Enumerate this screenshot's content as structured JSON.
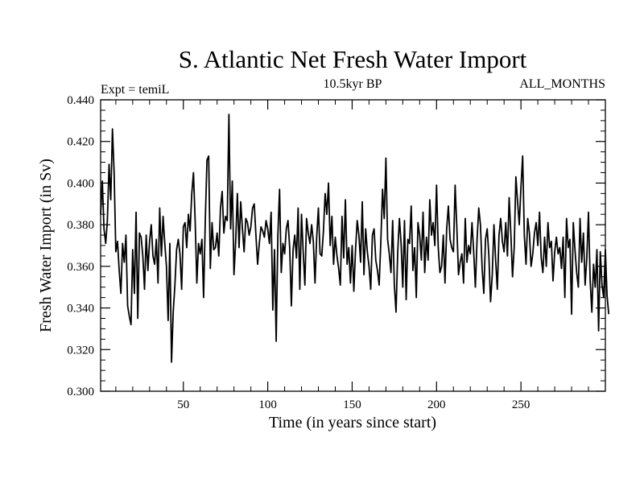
{
  "chart_data": {
    "type": "line",
    "title": "S. Atlantic Net Fresh Water Import",
    "subtitle_left": "Expt = temiL",
    "subtitle_center": "10.5kyr BP",
    "subtitle_right": "ALL_MONTHS",
    "xlabel": "Time (in years since start)",
    "ylabel": "Fresh Water Import (in Sv)",
    "xlim": [
      1,
      300
    ],
    "ylim": [
      0.3,
      0.44
    ],
    "x_ticks": [
      50,
      100,
      150,
      200,
      250
    ],
    "x_tick_labels": [
      "50",
      "100",
      "150",
      "200",
      "250"
    ],
    "y_ticks": [
      0.3,
      0.32,
      0.34,
      0.36,
      0.38,
      0.4,
      0.42,
      0.44
    ],
    "y_tick_labels": [
      "0.300",
      "0.320",
      "0.340",
      "0.360",
      "0.380",
      "0.400",
      "0.420",
      "0.440"
    ],
    "grid": false,
    "series": [
      {
        "name": "Fresh Water Import",
        "color": "#000000",
        "x_start": 1,
        "x_step": 1,
        "values": [
          0.385,
          0.401,
          0.378,
          0.371,
          0.382,
          0.409,
          0.392,
          0.426,
          0.405,
          0.367,
          0.372,
          0.358,
          0.347,
          0.371,
          0.362,
          0.375,
          0.341,
          0.336,
          0.332,
          0.368,
          0.347,
          0.386,
          0.335,
          0.376,
          0.374,
          0.365,
          0.349,
          0.375,
          0.358,
          0.372,
          0.38,
          0.365,
          0.361,
          0.373,
          0.352,
          0.388,
          0.365,
          0.384,
          0.371,
          0.36,
          0.334,
          0.371,
          0.314,
          0.338,
          0.351,
          0.368,
          0.373,
          0.366,
          0.349,
          0.379,
          0.381,
          0.369,
          0.385,
          0.377,
          0.395,
          0.405,
          0.382,
          0.352,
          0.371,
          0.366,
          0.373,
          0.345,
          0.382,
          0.411,
          0.413,
          0.359,
          0.381,
          0.368,
          0.369,
          0.376,
          0.365,
          0.388,
          0.396,
          0.376,
          0.384,
          0.382,
          0.433,
          0.378,
          0.401,
          0.356,
          0.372,
          0.395,
          0.369,
          0.391,
          0.378,
          0.367,
          0.383,
          0.381,
          0.375,
          0.379,
          0.388,
          0.39,
          0.375,
          0.361,
          0.371,
          0.379,
          0.377,
          0.374,
          0.382,
          0.378,
          0.371,
          0.386,
          0.339,
          0.368,
          0.324,
          0.375,
          0.397,
          0.357,
          0.371,
          0.366,
          0.378,
          0.382,
          0.369,
          0.341,
          0.368,
          0.375,
          0.364,
          0.388,
          0.349,
          0.385,
          0.367,
          0.351,
          0.383,
          0.376,
          0.371,
          0.38,
          0.372,
          0.352,
          0.374,
          0.388,
          0.366,
          0.365,
          0.377,
          0.395,
          0.385,
          0.4,
          0.37,
          0.384,
          0.361,
          0.374,
          0.365,
          0.359,
          0.351,
          0.384,
          0.364,
          0.392,
          0.361,
          0.369,
          0.352,
          0.37,
          0.348,
          0.368,
          0.382,
          0.375,
          0.362,
          0.391,
          0.356,
          0.378,
          0.367,
          0.36,
          0.349,
          0.375,
          0.378,
          0.363,
          0.358,
          0.351,
          0.372,
          0.397,
          0.383,
          0.412,
          0.373,
          0.366,
          0.357,
          0.382,
          0.351,
          0.338,
          0.367,
          0.383,
          0.371,
          0.35,
          0.382,
          0.344,
          0.373,
          0.371,
          0.389,
          0.358,
          0.369,
          0.345,
          0.381,
          0.375,
          0.363,
          0.386,
          0.357,
          0.374,
          0.363,
          0.392,
          0.375,
          0.381,
          0.37,
          0.399,
          0.369,
          0.357,
          0.36,
          0.375,
          0.352,
          0.378,
          0.389,
          0.373,
          0.369,
          0.367,
          0.399,
          0.379,
          0.356,
          0.362,
          0.366,
          0.352,
          0.383,
          0.362,
          0.37,
          0.366,
          0.381,
          0.367,
          0.35,
          0.373,
          0.388,
          0.38,
          0.359,
          0.347,
          0.373,
          0.378,
          0.365,
          0.343,
          0.356,
          0.38,
          0.363,
          0.349,
          0.375,
          0.383,
          0.372,
          0.367,
          0.381,
          0.365,
          0.393,
          0.376,
          0.355,
          0.369,
          0.403,
          0.391,
          0.38,
          0.398,
          0.413,
          0.375,
          0.361,
          0.383,
          0.376,
          0.36,
          0.366,
          0.376,
          0.381,
          0.37,
          0.386,
          0.364,
          0.357,
          0.374,
          0.36,
          0.381,
          0.369,
          0.372,
          0.353,
          0.367,
          0.374,
          0.366,
          0.369,
          0.359,
          0.374,
          0.345,
          0.383,
          0.369,
          0.373,
          0.337,
          0.381,
          0.368,
          0.357,
          0.35,
          0.383,
          0.362,
          0.376,
          0.351,
          0.364,
          0.386,
          0.353,
          0.338,
          0.361,
          0.35,
          0.368,
          0.329,
          0.367,
          0.351,
          0.345,
          0.368,
          0.346,
          0.337
        ]
      }
    ]
  }
}
